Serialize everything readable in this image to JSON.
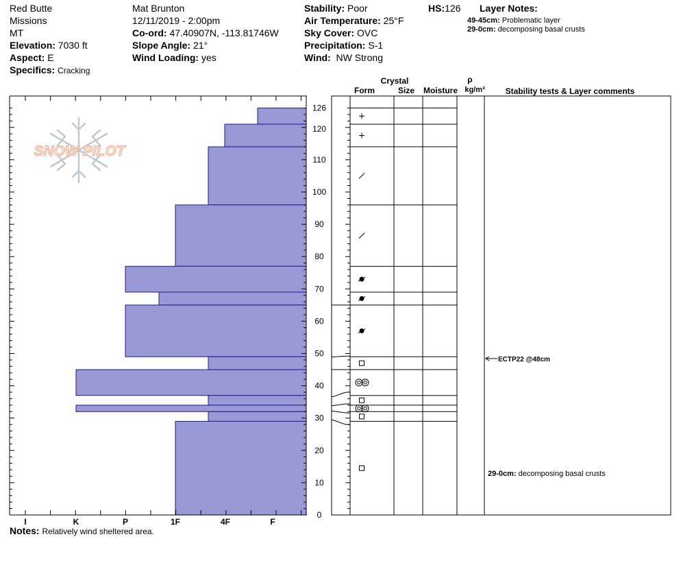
{
  "header": {
    "location": "Red Butte",
    "range": "Missions",
    "state": "MT",
    "elevation_label": "Elevation:",
    "elevation": "7030 ft",
    "aspect_label": "Aspect:",
    "aspect": "E",
    "specifics_label": "Specifics:",
    "specifics": "Cracking",
    "observer": "Mat Brunton",
    "datetime": "12/11/2019 - 2:00pm",
    "coord_label": "Co-ord:",
    "coord": "47.40907N, -113.81746W",
    "slope_label": "Slope Angle:",
    "slope": "21°",
    "wind_loading_label": "Wind Loading:",
    "wind_loading": "yes",
    "stability_label": "Stability:",
    "stability": "Poor",
    "air_temp_label": "Air Temperature:",
    "air_temp": "25°F",
    "sky_label": "Sky Cover:",
    "sky": "OVC",
    "precip_label": "Precipitation:",
    "precip": "S-1",
    "wind_label": "Wind:",
    "wind": "NW Strong",
    "hs_label": "HS:",
    "hs": "126",
    "layer_notes_title": "Layer Notes:",
    "layer_notes": [
      {
        "range": "49-45cm:",
        "text": "Problematic layer"
      },
      {
        "range": "29-0cm:",
        "text": "decomposing basal crusts"
      }
    ]
  },
  "columns": {
    "crystal": "Crystal",
    "form": "Form",
    "size": "Size",
    "moisture": "Moisture",
    "rho": "ρ",
    "density_unit": "kg/m³",
    "comments": "Stability tests & Layer comments"
  },
  "watermark": "SNOW PILOT",
  "notes_label": "Notes:",
  "notes": "Relatively wind sheltered area.",
  "chart_data": {
    "type": "bar",
    "title": "",
    "xlabel": "",
    "ylabel": "",
    "ylim": [
      0,
      126
    ],
    "y_ticks": [
      0,
      10,
      20,
      30,
      40,
      50,
      60,
      70,
      80,
      90,
      100,
      110,
      120,
      126
    ],
    "hardness_scale": [
      "I",
      "K",
      "P",
      "1F",
      "4F",
      "F"
    ],
    "layers": [
      {
        "top": 126,
        "bottom": 121,
        "hardness": "F+",
        "form": "+"
      },
      {
        "top": 121,
        "bottom": 114,
        "hardness": "4F-",
        "form": "+"
      },
      {
        "top": 114,
        "bottom": 96,
        "hardness": "4F",
        "form": "/"
      },
      {
        "top": 96,
        "bottom": 77,
        "hardness": "1F",
        "form": "/"
      },
      {
        "top": 77,
        "bottom": 69,
        "hardness": "P",
        "form": "●"
      },
      {
        "top": 69,
        "bottom": 65,
        "hardness": "P-",
        "form": "●"
      },
      {
        "top": 65,
        "bottom": 49,
        "hardness": "P",
        "form": "●"
      },
      {
        "top": 49,
        "bottom": 45,
        "hardness": "4F",
        "form": "□"
      },
      {
        "top": 45,
        "bottom": 37,
        "hardness": "K",
        "form": "◎◎"
      },
      {
        "top": 37,
        "bottom": 34,
        "hardness": "4F",
        "form": "□"
      },
      {
        "top": 34,
        "bottom": 32,
        "hardness": "K",
        "form": "◎◎"
      },
      {
        "top": 32,
        "bottom": 29,
        "hardness": "4F",
        "form": "□"
      },
      {
        "top": 29,
        "bottom": 0,
        "hardness": "1F",
        "form": "□"
      }
    ],
    "stability_tests": [
      {
        "depth": 48,
        "label": "ECTP22 @48cm"
      }
    ],
    "layer_comments": [
      {
        "depth": 13,
        "range": "29-0cm:",
        "text": "decomposing basal crusts"
      }
    ]
  }
}
